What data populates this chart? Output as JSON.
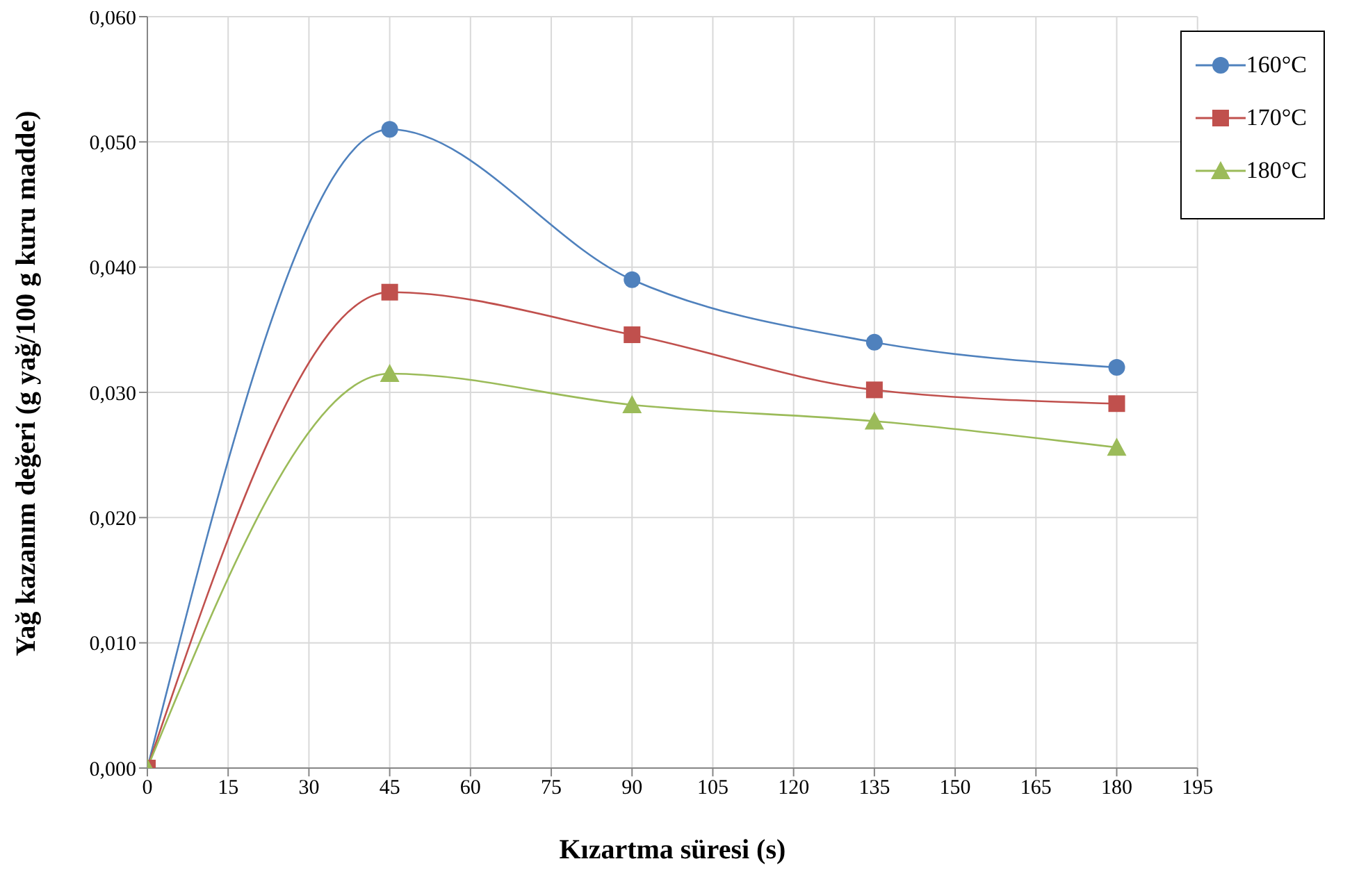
{
  "chart_data": {
    "type": "line",
    "xlabel": "Kızartma süresi (s)",
    "ylabel": "Yağ kazanım değeri (g yağ/100 g kuru madde)",
    "x": [
      0,
      45,
      90,
      135,
      180
    ],
    "series": [
      {
        "name": "160°C",
        "color": "#4f81bd",
        "marker": "circle",
        "values": [
          0,
          0.051,
          0.039,
          0.034,
          0.032
        ]
      },
      {
        "name": "170°C",
        "color": "#c0504d",
        "marker": "square",
        "values": [
          0,
          0.038,
          0.0346,
          0.0302,
          0.0291
        ]
      },
      {
        "name": "180°C",
        "color": "#9bbb59",
        "marker": "triangle",
        "values": [
          0,
          0.0315,
          0.029,
          0.0277,
          0.0256
        ]
      }
    ],
    "xlim": [
      0,
      195
    ],
    "xticks": [
      0,
      15,
      30,
      45,
      60,
      75,
      90,
      105,
      120,
      135,
      150,
      165,
      180,
      195
    ],
    "ylim": [
      0,
      0.06
    ],
    "yticks": [
      {
        "value": 0,
        "label": "0,000"
      },
      {
        "value": 0.01,
        "label": "0,010"
      },
      {
        "value": 0.02,
        "label": "0,020"
      },
      {
        "value": 0.03,
        "label": "0,030"
      },
      {
        "value": 0.04,
        "label": "0,040"
      },
      {
        "value": 0.05,
        "label": "0,050"
      },
      {
        "value": 0.06,
        "label": "0,060"
      }
    ],
    "grid": true,
    "legend": "top right"
  }
}
